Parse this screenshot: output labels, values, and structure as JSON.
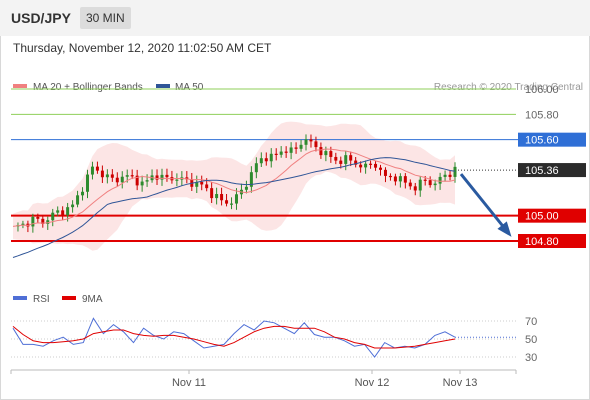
{
  "header": {
    "symbol": "USD/JPY",
    "timeframe": "30 MIN"
  },
  "timestamp": "Thursday, November 12, 2020 11:02:50 AM CET",
  "legend": {
    "ma20": "MA 20 + Bollinger Bands",
    "ma50": "MA 50",
    "credit": "Research © 2020 Trading Central",
    "ma20_color": "#f08080",
    "ma50_color": "#2f5597"
  },
  "osc_legend": {
    "rsi": "RSI",
    "ma9": "9MA",
    "rsi_color": "#4f6fd6",
    "ma9_color": "#e00000"
  },
  "colors": {
    "resistance": "#8fcf5a",
    "support": "#e00000",
    "pivot": "#2f6fd6",
    "candle_up": "#2e8b2e",
    "candle_down": "#cc0000",
    "arrow": "#2a5aa0",
    "bollinger_fill": "#fbdcdc"
  },
  "chart_data": [
    {
      "type": "candlestick",
      "title": "USD/JPY 30 MIN",
      "ylim": [
        104.65,
        106.15
      ],
      "levels": [
        {
          "value": 106.0,
          "label": "106.00",
          "kind": "resistance"
        },
        {
          "value": 105.8,
          "label": "105.80",
          "kind": "resistance"
        },
        {
          "value": 105.6,
          "label": "105.60",
          "kind": "pivot"
        },
        {
          "value": 105.36,
          "label": "105.36",
          "kind": "last"
        },
        {
          "value": 105.0,
          "label": "105.00",
          "kind": "support"
        },
        {
          "value": 104.8,
          "label": "104.80",
          "kind": "support"
        }
      ],
      "x_labels": [
        "Nov 11",
        "Nov 12",
        "Nov 13"
      ],
      "close_path": [
        104.9,
        104.93,
        104.97,
        104.95,
        105.01,
        105.04,
        105.08,
        105.24,
        105.39,
        105.32,
        105.28,
        105.31,
        105.3,
        105.24,
        105.33,
        105.29,
        105.3,
        105.28,
        105.26,
        105.23,
        105.16,
        105.1,
        105.12,
        105.22,
        105.38,
        105.47,
        105.46,
        105.53,
        105.5,
        105.62,
        105.54,
        105.5,
        105.43,
        105.45,
        105.42,
        105.38,
        105.42,
        105.3,
        105.31,
        105.26,
        105.22,
        105.28,
        105.25,
        105.32,
        105.36
      ],
      "projection": {
        "from": 105.36,
        "to": 104.81
      },
      "series": [
        {
          "name": "MA 20 + Bollinger Bands"
        },
        {
          "name": "MA 50"
        }
      ]
    },
    {
      "type": "line",
      "title": "RSI",
      "ylim": [
        20,
        80
      ],
      "y_ticks": [
        70,
        50,
        30
      ],
      "series": [
        {
          "name": "RSI",
          "values": [
            62,
            44,
            44,
            42,
            48,
            52,
            44,
            46,
            73,
            56,
            66,
            58,
            46,
            62,
            54,
            50,
            58,
            56,
            48,
            40,
            42,
            44,
            56,
            66,
            60,
            70,
            68,
            62,
            56,
            68,
            55,
            52,
            52,
            48,
            42,
            44,
            30,
            46,
            40,
            42,
            40,
            44,
            54,
            58,
            52
          ]
        },
        {
          "name": "9MA",
          "values": [
            64,
            55,
            48,
            46,
            46,
            47,
            48,
            50,
            56,
            58,
            60,
            60,
            56,
            54,
            53,
            54,
            54,
            52,
            50,
            47,
            44,
            42,
            46,
            52,
            58,
            62,
            64,
            64,
            62,
            62,
            62,
            58,
            52,
            50,
            46,
            44,
            40,
            40,
            40,
            41,
            42,
            44,
            46,
            48,
            50
          ]
        }
      ]
    }
  ]
}
